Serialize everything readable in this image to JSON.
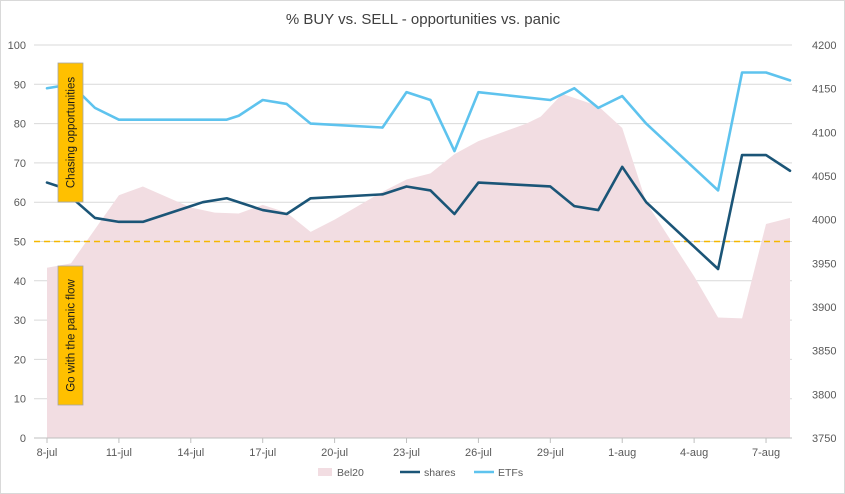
{
  "colors": {
    "bel20_fill": "#f2dde2",
    "shares": "#1b5577",
    "etfs": "#5ec3ee",
    "threshold": "#f5b800",
    "annotation_box": "#ffc000",
    "grid": "#d9d9d9"
  },
  "chart_data": {
    "type": "line",
    "title": "% BUY vs. SELL - opportunities vs. panic",
    "x_tick_labels": [
      "8-jul",
      "11-jul",
      "14-jul",
      "17-jul",
      "20-jul",
      "23-jul",
      "26-jul",
      "29-jul",
      "1-aug",
      "4-aug",
      "7-aug"
    ],
    "x_tick_days": [
      0,
      3,
      6,
      9,
      12,
      15,
      18,
      21,
      24,
      27,
      30
    ],
    "y_left": {
      "min": 0,
      "max": 100,
      "step": 10,
      "ticks": [
        "0",
        "10",
        "20",
        "30",
        "40",
        "50",
        "60",
        "70",
        "80",
        "90",
        "100"
      ]
    },
    "y_right": {
      "min": 3750,
      "max": 4200,
      "step": 50,
      "ticks": [
        "3750",
        "3800",
        "3850",
        "3900",
        "3950",
        "4000",
        "4050",
        "4100",
        "4150",
        "4200"
      ]
    },
    "grid": true,
    "legend_position": "bottom",
    "threshold": {
      "y": 50,
      "style": "dashed"
    },
    "series": [
      {
        "name": "Bel20",
        "type": "area",
        "axis": "right",
        "x": [
          0,
          1,
          3,
          4,
          6,
          7,
          8,
          9,
          10,
          11,
          12,
          14,
          15,
          16,
          17,
          18,
          20,
          20.6,
          21.5,
          23,
          24,
          25,
          27,
          28,
          29,
          30,
          31
        ],
        "y": [
          3945,
          3950,
          4028,
          4038,
          4014,
          4008,
          4007,
          4017,
          4008,
          3986,
          4000,
          4032,
          4046,
          4053,
          4075,
          4090,
          4110,
          4118,
          4144,
          4130,
          4105,
          4020,
          3935,
          3888,
          3887,
          3995,
          4002
        ]
      },
      {
        "name": "shares",
        "type": "line",
        "axis": "left",
        "x": [
          0,
          0.5,
          2,
          3,
          4,
          6,
          6.5,
          7.5,
          9,
          10,
          11,
          14,
          15,
          16,
          17,
          18,
          21,
          22,
          23,
          24,
          25,
          28,
          29,
          30,
          31
        ],
        "y": [
          65,
          64,
          56,
          55,
          55,
          59,
          60,
          61,
          58,
          57,
          61,
          62,
          64,
          63,
          57,
          65,
          64,
          59,
          58,
          69,
          60,
          43,
          72,
          72,
          68
        ]
      },
      {
        "name": "ETFs",
        "type": "line",
        "axis": "left",
        "x": [
          0,
          1,
          2,
          3,
          4,
          6,
          7.5,
          8,
          9,
          10,
          11,
          14,
          15,
          16,
          17,
          18,
          21,
          22,
          23,
          24,
          25,
          28,
          29,
          30,
          31
        ],
        "y": [
          89,
          90,
          84,
          81,
          81,
          81,
          81,
          82,
          86,
          85,
          80,
          79,
          88,
          86,
          73,
          88,
          86,
          89,
          84,
          87,
          80,
          63,
          93,
          93,
          91
        ]
      }
    ],
    "annotations": [
      {
        "text": "Chasing opportunities"
      },
      {
        "text": "Go with the panic flow"
      }
    ]
  }
}
